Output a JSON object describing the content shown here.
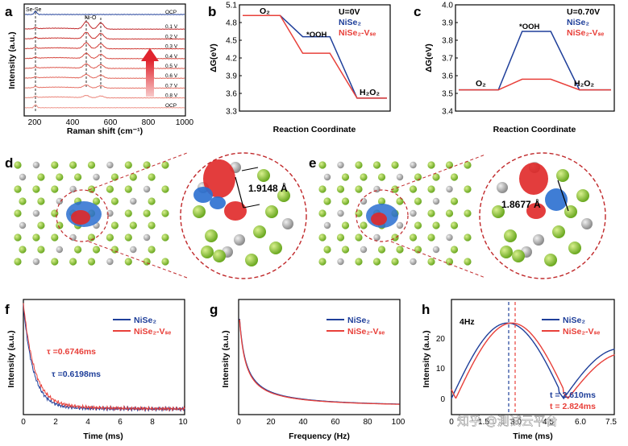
{
  "panels": {
    "a": {
      "label": "a",
      "xlabel": "Raman shift (cm⁻¹)",
      "ylabel": "Intensity (a.u.)",
      "peak_labels": [
        "Se-Se",
        "Ni-O"
      ],
      "curve_labels": [
        "OCP",
        "0.1 V",
        "0.2 V",
        "0.3 V",
        "0.4 V",
        "0.5 V",
        "0.6 V",
        "0.7 V",
        "0.8 V",
        "OCP"
      ],
      "xticks": [
        "200",
        "400",
        "600",
        "800",
        "1000"
      ]
    },
    "b": {
      "label": "b",
      "title": "U=0V",
      "xlabel": "Reaction Coordinate",
      "ylabel": "ΔG(eV)",
      "yticks": [
        "3.3",
        "3.6",
        "3.9",
        "4.2",
        "4.5",
        "4.8",
        "5.1"
      ],
      "states": [
        "O₂",
        "*OOH",
        "H₂O₂"
      ],
      "legend": [
        "NiSe₂",
        "NiSe₂-Vₛₑ"
      ]
    },
    "c": {
      "label": "c",
      "title": "U=0.70V",
      "xlabel": "Reaction Coordinate",
      "ylabel": "ΔG(eV)",
      "yticks": [
        "3.4",
        "3.5",
        "3.6",
        "3.7",
        "3.8",
        "3.9",
        "4.0"
      ],
      "states": [
        "O₂",
        "*OOH",
        "H₂O₂"
      ],
      "legend": [
        "NiSe₂",
        "NiSe₂-Vₛₑ"
      ]
    },
    "d": {
      "label": "d",
      "distance": "1.9148 Å"
    },
    "e": {
      "label": "e",
      "distance": "1.8677 Å"
    },
    "f": {
      "label": "f",
      "xlabel": "Time (ms)",
      "ylabel": "Intensity (a.u.)",
      "xticks": [
        "0",
        "2",
        "4",
        "6",
        "8",
        "10"
      ],
      "tau_vse": "τ =0.6746ms",
      "tau_nise": "τ =0.6198ms",
      "legend": [
        "NiSe₂",
        "NiSe₂-Vₛₑ"
      ]
    },
    "g": {
      "label": "g",
      "xlabel": "Frequency (Hz)",
      "ylabel": "Intensity (a.u.)",
      "xticks": [
        "0",
        "20",
        "40",
        "60",
        "80",
        "100"
      ],
      "legend": [
        "NiSe₂",
        "NiSe₂-Vₛₑ"
      ]
    },
    "h": {
      "label": "h",
      "xlabel": "Time (ms)",
      "ylabel": "Intensity (a.u.)",
      "freq": "4Hz",
      "yticks": [
        "0",
        "10",
        "20"
      ],
      "xticks": [
        "0",
        "1.5",
        "3.0",
        "4.5",
        "6.0",
        "7.5"
      ],
      "t_nise": "t = 2.610ms",
      "t_vse": "t = 2.824ms",
      "legend": [
        "NiSe₂",
        "NiSe₂-Vₛₑ"
      ]
    }
  },
  "watermark": "知乎 @測试云平台",
  "colors": {
    "blue": "#1f3f9a",
    "red": "#e8403a",
    "green": "#8fc43a",
    "gray": "#a8a8a8",
    "dred": "#c0282a"
  },
  "chart_data": [
    {
      "panel": "b",
      "type": "line",
      "title": "U=0V",
      "xlabel": "Reaction Coordinate",
      "ylabel": "ΔG(eV)",
      "categories": [
        "O₂",
        "*OOH",
        "H₂O₂"
      ],
      "series": [
        {
          "name": "NiSe₂",
          "values": [
            4.92,
            4.56,
            3.52
          ]
        },
        {
          "name": "NiSe₂-Vₛₑ",
          "values": [
            4.92,
            4.28,
            3.52
          ]
        }
      ],
      "ylim": [
        3.3,
        5.1
      ]
    },
    {
      "panel": "c",
      "type": "line",
      "title": "U=0.70V",
      "xlabel": "Reaction Coordinate",
      "ylabel": "ΔG(eV)",
      "categories": [
        "O₂",
        "*OOH",
        "H₂O₂"
      ],
      "series": [
        {
          "name": "NiSe₂",
          "values": [
            3.52,
            3.85,
            3.52
          ]
        },
        {
          "name": "NiSe₂-Vₛₑ",
          "values": [
            3.52,
            3.58,
            3.52
          ]
        }
      ],
      "ylim": [
        3.4,
        4.0
      ]
    }
  ]
}
